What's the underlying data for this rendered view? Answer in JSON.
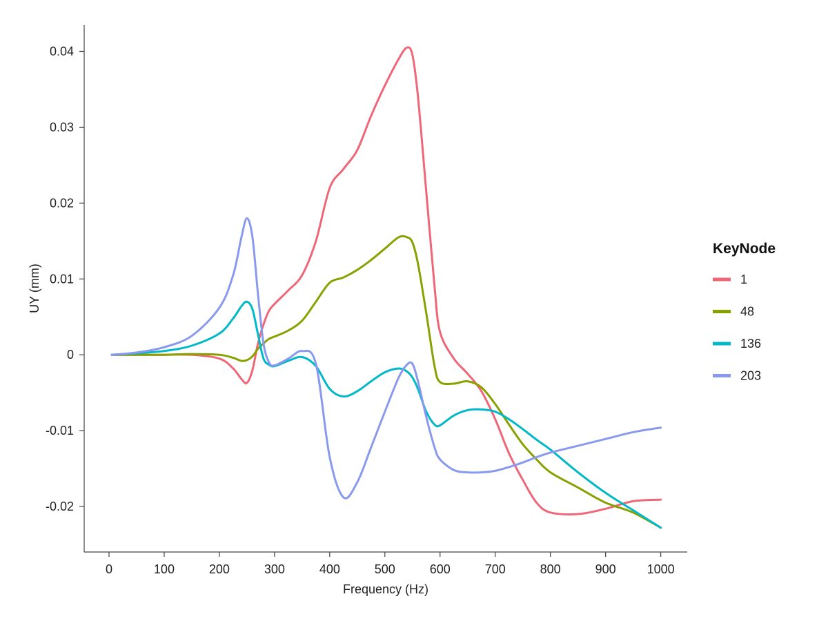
{
  "chart_data": {
    "type": "line",
    "title": "",
    "xlabel": "Frequency (Hz)",
    "ylabel": "UY (mm)",
    "xlim": [
      -45,
      1048
    ],
    "ylim": [
      -0.026,
      0.0435
    ],
    "xticks": [
      0,
      100,
      200,
      300,
      400,
      500,
      600,
      700,
      800,
      900,
      1000
    ],
    "yticks": [
      -0.02,
      -0.01,
      0,
      0.01,
      0.02,
      0.03,
      0.04
    ],
    "ytick_labels": [
      "-0.02",
      "-0.01",
      "0",
      "0.01",
      "0.02",
      "0.03",
      "0.04"
    ],
    "grid": false,
    "legend": {
      "title": "KeyNode",
      "position": "right"
    },
    "x": [
      5,
      50,
      100,
      150,
      200,
      225,
      240,
      250,
      260,
      270,
      280,
      290,
      300,
      325,
      350,
      375,
      400,
      425,
      450,
      475,
      500,
      525,
      540,
      550,
      560,
      575,
      590,
      600,
      625,
      650,
      675,
      700,
      725,
      750,
      775,
      800,
      850,
      900,
      950,
      1000
    ],
    "series": [
      {
        "name": "1",
        "color": "#EE6677",
        "values": [
          0,
          0,
          0,
          0,
          -0.0005,
          -0.0018,
          -0.0032,
          -0.0037,
          -0.002,
          0.0015,
          0.004,
          0.0058,
          0.0067,
          0.0085,
          0.0105,
          0.015,
          0.022,
          0.0245,
          0.027,
          0.0315,
          0.0355,
          0.039,
          0.0405,
          0.0395,
          0.034,
          0.0215,
          0.009,
          0.003,
          -0.0005,
          -0.0025,
          -0.0048,
          -0.0085,
          -0.013,
          -0.0165,
          -0.0195,
          -0.0208,
          -0.021,
          -0.0203,
          -0.0193,
          -0.0191
        ]
      },
      {
        "name": "48",
        "color": "#88A000",
        "values": [
          0,
          0,
          0,
          0.0001,
          0,
          -0.0004,
          -0.0008,
          -0.0007,
          -0.0002,
          0.0008,
          0.0015,
          0.0021,
          0.0024,
          0.0032,
          0.0045,
          0.007,
          0.0095,
          0.0102,
          0.0112,
          0.0125,
          0.014,
          0.0155,
          0.0155,
          0.0148,
          0.012,
          0.0055,
          -0.0015,
          -0.0036,
          -0.0038,
          -0.0035,
          -0.0043,
          -0.0065,
          -0.0092,
          -0.0118,
          -0.0138,
          -0.0155,
          -0.0175,
          -0.0195,
          -0.0208,
          -0.0228
        ]
      },
      {
        "name": "136",
        "color": "#00B8C8",
        "values": [
          0,
          0.0002,
          0.0005,
          0.0012,
          0.0028,
          0.0048,
          0.0064,
          0.007,
          0.006,
          0.0027,
          -0.0005,
          -0.0013,
          -0.0015,
          -0.0008,
          -0.0003,
          -0.0015,
          -0.0045,
          -0.0055,
          -0.0048,
          -0.0035,
          -0.0023,
          -0.0018,
          -0.0022,
          -0.003,
          -0.0045,
          -0.0075,
          -0.0092,
          -0.0093,
          -0.008,
          -0.0073,
          -0.0072,
          -0.0075,
          -0.0085,
          -0.0098,
          -0.0112,
          -0.0125,
          -0.0155,
          -0.0182,
          -0.0205,
          -0.0228
        ]
      },
      {
        "name": "203",
        "color": "#8899EE",
        "values": [
          0,
          0.0003,
          0.001,
          0.0025,
          0.0062,
          0.0105,
          0.0155,
          0.018,
          0.0155,
          0.008,
          0.0015,
          -0.001,
          -0.0014,
          -0.0005,
          0.0005,
          -0.0012,
          -0.0135,
          -0.0188,
          -0.0168,
          -0.0122,
          -0.0075,
          -0.003,
          -0.0013,
          -0.0012,
          -0.0035,
          -0.0082,
          -0.0122,
          -0.0138,
          -0.0152,
          -0.0155,
          -0.0155,
          -0.0153,
          -0.0148,
          -0.0142,
          -0.0135,
          -0.0129,
          -0.012,
          -0.0111,
          -0.0102,
          -0.0096
        ]
      }
    ]
  }
}
